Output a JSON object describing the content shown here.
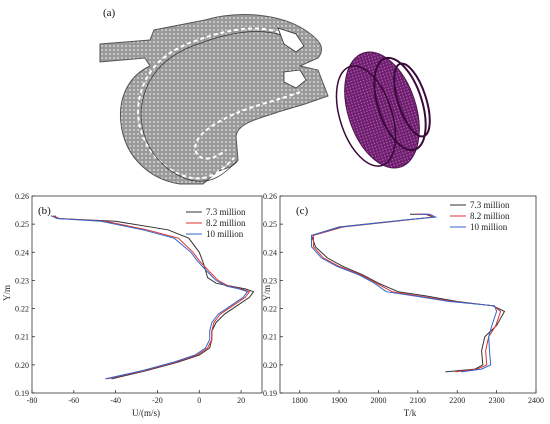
{
  "figure": {
    "panel_a_label": "(a)",
    "mesh_color": "#8a8a8a",
    "mesh_3d_color": "#7a2a7a"
  },
  "chart_data": [
    {
      "type": "line",
      "panel_label": "(b)",
      "xlabel": "U/(m/s)",
      "ylabel": "Y/m",
      "xlim": [
        -80,
        30
      ],
      "ylim": [
        0.19,
        0.26
      ],
      "xticks": [
        -80,
        -60,
        -40,
        -20,
        0,
        20
      ],
      "yticks": [
        0.19,
        0.2,
        0.21,
        0.22,
        0.23,
        0.24,
        0.25,
        0.26
      ],
      "grid": false,
      "legend_position": "top-right",
      "series": [
        {
          "name": "7.3 million",
          "color": "#333333",
          "x": [
            -42,
            -25,
            -10,
            0,
            5,
            6,
            6,
            8,
            12,
            18,
            24,
            26,
            22,
            15,
            8,
            4,
            2,
            0,
            -5,
            -15,
            -40,
            -68,
            -69
          ],
          "y": [
            0.195,
            0.198,
            0.201,
            0.2035,
            0.206,
            0.209,
            0.212,
            0.215,
            0.218,
            0.221,
            0.224,
            0.226,
            0.227,
            0.228,
            0.229,
            0.231,
            0.236,
            0.24,
            0.245,
            0.248,
            0.251,
            0.252,
            0.253
          ]
        },
        {
          "name": "8.2 million",
          "color": "#e03030",
          "x": [
            -44,
            -26,
            -11,
            -1,
            4,
            6,
            6,
            7,
            10,
            16,
            22,
            24,
            20,
            14,
            9,
            5,
            0,
            -3,
            -10,
            -25,
            -45,
            -67,
            -70
          ],
          "y": [
            0.195,
            0.198,
            0.201,
            0.2035,
            0.206,
            0.209,
            0.212,
            0.215,
            0.218,
            0.221,
            0.224,
            0.226,
            0.227,
            0.228,
            0.23,
            0.233,
            0.237,
            0.24,
            0.245,
            0.248,
            0.251,
            0.252,
            0.253
          ]
        },
        {
          "name": "10 million",
          "color": "#3366cc",
          "x": [
            -45,
            -27,
            -12,
            -2,
            3,
            5,
            5,
            6,
            9,
            15,
            21,
            23,
            19,
            13,
            8,
            4,
            -1,
            -4,
            -12,
            -27,
            -47,
            -68,
            -71
          ],
          "y": [
            0.195,
            0.198,
            0.201,
            0.2035,
            0.206,
            0.209,
            0.212,
            0.215,
            0.218,
            0.221,
            0.224,
            0.226,
            0.227,
            0.228,
            0.23,
            0.233,
            0.237,
            0.24,
            0.245,
            0.248,
            0.251,
            0.252,
            0.253
          ]
        }
      ]
    },
    {
      "type": "line",
      "panel_label": "(c)",
      "xlabel": "T/k",
      "ylabel": "Y/m",
      "xlim": [
        1750,
        2400
      ],
      "ylim": [
        0.19,
        0.26
      ],
      "xticks": [
        1800,
        1900,
        2000,
        2100,
        2200,
        2300,
        2400
      ],
      "yticks": [
        0.19,
        0.2,
        0.21,
        0.22,
        0.23,
        0.24,
        0.25,
        0.26
      ],
      "grid": false,
      "legend_position": "top-right",
      "series": [
        {
          "name": "7.3 million",
          "color": "#333333",
          "x": [
            2170,
            2245,
            2265,
            2262,
            2270,
            2300,
            2320,
            2290,
            2200,
            2120,
            2050,
            2000,
            1960,
            1910,
            1870,
            1840,
            1830,
            1900,
            2000,
            2070,
            2140,
            2120,
            2080
          ],
          "y": [
            0.1975,
            0.1985,
            0.2,
            0.205,
            0.21,
            0.214,
            0.219,
            0.221,
            0.2225,
            0.2245,
            0.226,
            0.229,
            0.232,
            0.235,
            0.238,
            0.242,
            0.246,
            0.249,
            0.2505,
            0.2515,
            0.2525,
            0.2535,
            0.2535
          ]
        },
        {
          "name": "8.2 million",
          "color": "#e03030",
          "x": [
            2195,
            2250,
            2275,
            2272,
            2280,
            2298,
            2310,
            2292,
            2190,
            2100,
            2035,
            1995,
            1955,
            1900,
            1860,
            1835,
            1835,
            1910,
            2010,
            2075,
            2140,
            2125,
            2095
          ],
          "y": [
            0.1975,
            0.1985,
            0.2,
            0.205,
            0.21,
            0.214,
            0.219,
            0.221,
            0.2225,
            0.2245,
            0.226,
            0.229,
            0.232,
            0.235,
            0.238,
            0.242,
            0.246,
            0.249,
            0.2505,
            0.2515,
            0.2525,
            0.2535,
            0.2535
          ]
        },
        {
          "name": "10 million",
          "color": "#3366cc",
          "x": [
            2210,
            2262,
            2285,
            2282,
            2280,
            2288,
            2300,
            2295,
            2180,
            2090,
            2020,
            1990,
            1950,
            1895,
            1855,
            1830,
            1830,
            1905,
            2005,
            2070,
            2145,
            2130,
            2100
          ],
          "y": [
            0.1975,
            0.1985,
            0.2,
            0.205,
            0.21,
            0.214,
            0.219,
            0.221,
            0.2225,
            0.2245,
            0.226,
            0.229,
            0.232,
            0.235,
            0.238,
            0.242,
            0.246,
            0.249,
            0.2505,
            0.2515,
            0.2525,
            0.2535,
            0.2535
          ]
        }
      ]
    }
  ]
}
